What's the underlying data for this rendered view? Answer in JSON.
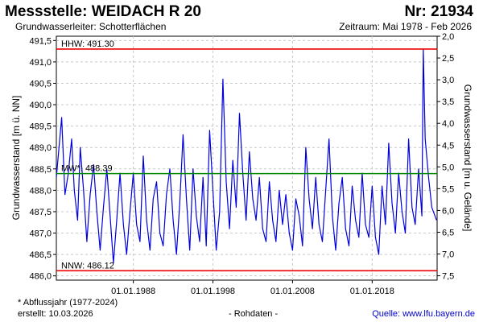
{
  "header": {
    "title": "Messstelle: WEIDACH R 20",
    "number": "Nr: 21934",
    "aquifer": "Grundwasserleiter:   Schotterflächen",
    "period": "Zeitraum: Mai 1978 - Feb 2026"
  },
  "footer": {
    "footnote": "* Abflussjahr (1977-2024)",
    "created": "erstellt:  10.03.2026",
    "rawdata": "- Rohdaten -",
    "source": "Quelle: www.lfu.bayern.de"
  },
  "colors": {
    "series": "#0000dd",
    "hhw": "#ee0000",
    "nnw": "#ee0000",
    "mw": "#008800",
    "grid": "#c8c8c8"
  },
  "chart_data": {
    "type": "line",
    "title": "Messstelle: WEIDACH R 20",
    "ylabel": "Grundwasserstand [m ü. NN]",
    "y2label": "Grundwasserstand [m u. Gelände]",
    "ylim": [
      485.9,
      491.6
    ],
    "y2lim": [
      2.0,
      7.6
    ],
    "xlim": [
      "1978-05-01",
      "2026-02-28"
    ],
    "grid": true,
    "y_ticks": [
      "491,5",
      "491,0",
      "490,5",
      "490,0",
      "489,5",
      "489,0",
      "488,5",
      "488,0",
      "487,5",
      "487,0",
      "486,5",
      "486,0"
    ],
    "y2_ticks": [
      "2,0",
      "2,5",
      "3,0",
      "3,5",
      "4,0",
      "4,5",
      "5,0",
      "5,5",
      "6,0",
      "6,5",
      "7,0",
      "7,5"
    ],
    "x_ticks": [
      {
        "date": "1988-01-01",
        "label": "01.01.1988"
      },
      {
        "date": "1998-01-01",
        "label": "01.01.1998"
      },
      {
        "date": "2008-01-01",
        "label": "01.01.2008"
      },
      {
        "date": "2018-01-01",
        "label": "01.01.2018"
      }
    ],
    "reference_lines": [
      {
        "label": "HHW: 491.30",
        "value": 491.3,
        "color": "#ee0000"
      },
      {
        "label": "MW*: 488.39",
        "value": 488.39,
        "color": "#008800"
      },
      {
        "label": "NNW: 486.12",
        "value": 486.12,
        "color": "#ee0000"
      }
    ],
    "series": [
      {
        "x": [
          "1978-05",
          "1979-01",
          "1979-06",
          "1979-11",
          "1980-04",
          "1980-08",
          "1981-01",
          "1981-05",
          "1981-10",
          "1982-03",
          "1982-08",
          "1983-01",
          "1983-06",
          "1983-11",
          "1984-04",
          "1984-09",
          "1985-02",
          "1985-07",
          "1985-12",
          "1986-05",
          "1986-10",
          "1987-03",
          "1987-08",
          "1988-01",
          "1988-06",
          "1988-11",
          "1989-04",
          "1989-09",
          "1990-02",
          "1990-07",
          "1990-12",
          "1991-05",
          "1991-10",
          "1992-03",
          "1992-08",
          "1993-01",
          "1993-06",
          "1993-11",
          "1994-04",
          "1994-09",
          "1995-02",
          "1995-07",
          "1995-12",
          "1996-05",
          "1996-10",
          "1997-03",
          "1997-08",
          "1998-01",
          "1998-06",
          "1998-11",
          "1999-04",
          "1999-09",
          "2000-02",
          "2000-07",
          "2000-12",
          "2001-05",
          "2001-10",
          "2002-03",
          "2002-08",
          "2003-01",
          "2003-06",
          "2003-11",
          "2004-04",
          "2004-09",
          "2005-02",
          "2005-07",
          "2005-12",
          "2006-05",
          "2006-10",
          "2007-03",
          "2007-08",
          "2008-01",
          "2008-06",
          "2008-11",
          "2009-04",
          "2009-09",
          "2010-02",
          "2010-07",
          "2010-12",
          "2011-05",
          "2011-10",
          "2012-03",
          "2012-08",
          "2013-01",
          "2013-06",
          "2013-11",
          "2014-04",
          "2014-09",
          "2015-02",
          "2015-07",
          "2015-12",
          "2016-05",
          "2016-10",
          "2017-03",
          "2017-08",
          "2018-01",
          "2018-06",
          "2018-11",
          "2019-04",
          "2019-09",
          "2020-02",
          "2020-07",
          "2020-12",
          "2021-05",
          "2021-10",
          "2022-03",
          "2022-08",
          "2023-01",
          "2023-06",
          "2023-11",
          "2024-04",
          "2024-06",
          "2024-09",
          "2025-02",
          "2025-07",
          "2026-02"
        ],
        "values": [
          488.3,
          489.7,
          487.9,
          488.4,
          489.2,
          488.0,
          487.3,
          489.0,
          488.0,
          486.8,
          487.9,
          488.6,
          487.5,
          486.6,
          487.6,
          488.5,
          487.4,
          486.3,
          487.3,
          488.4,
          487.2,
          486.5,
          487.5,
          488.4,
          487.2,
          486.8,
          488.8,
          487.3,
          486.6,
          487.8,
          488.2,
          487.0,
          486.7,
          487.9,
          488.5,
          487.3,
          486.5,
          487.7,
          489.3,
          487.8,
          486.6,
          488.5,
          487.4,
          486.8,
          488.3,
          486.7,
          489.4,
          488.0,
          486.6,
          487.5,
          490.6,
          488.2,
          487.1,
          488.7,
          487.6,
          489.8,
          488.4,
          487.3,
          488.9,
          487.8,
          487.3,
          488.3,
          487.1,
          486.8,
          488.2,
          487.3,
          486.8,
          488.0,
          487.2,
          487.9,
          487.0,
          486.6,
          487.8,
          487.4,
          486.7,
          489.0,
          487.8,
          487.1,
          488.3,
          487.2,
          486.8,
          488.0,
          489.2,
          487.4,
          486.6,
          487.7,
          488.3,
          487.1,
          486.7,
          488.1,
          487.3,
          486.9,
          488.4,
          487.2,
          486.9,
          488.1,
          486.9,
          486.5,
          488.1,
          487.2,
          489.1,
          487.7,
          487.0,
          488.4,
          487.5,
          487.0,
          489.2,
          487.6,
          487.2,
          488.5,
          487.4,
          491.3,
          489.2,
          488.3,
          487.6,
          487.3
        ]
      }
    ]
  }
}
